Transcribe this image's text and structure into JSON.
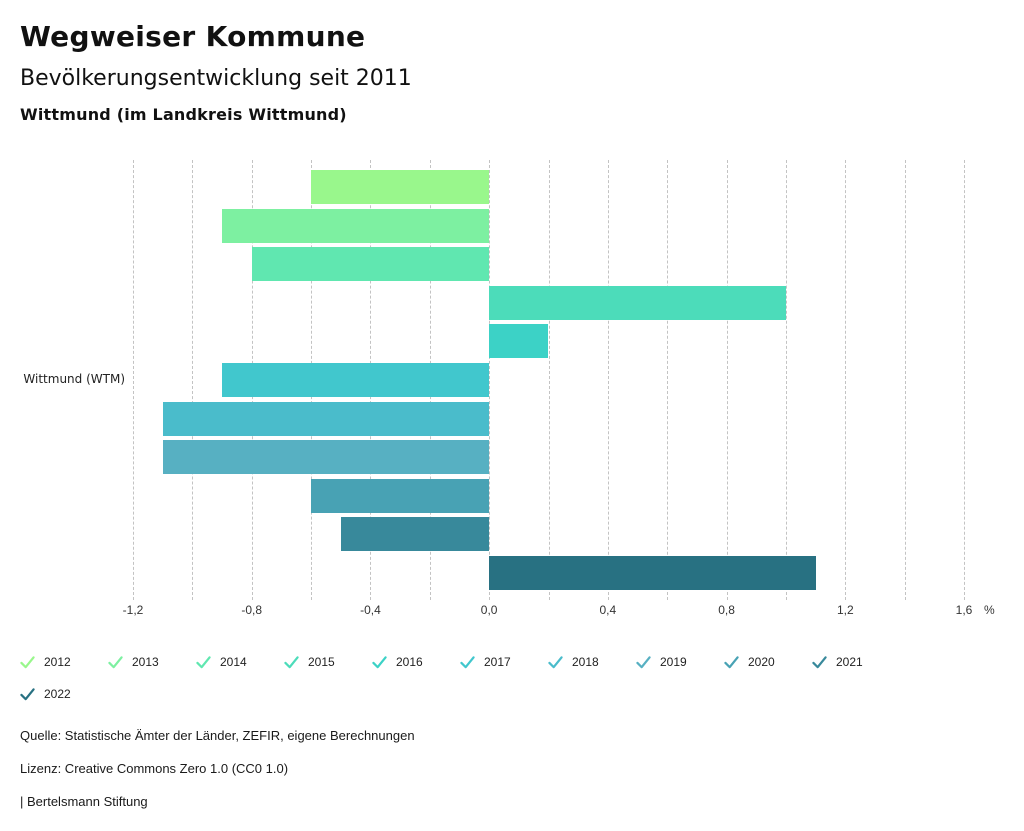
{
  "header": {
    "title": "Wegweiser Kommune",
    "subtitle": "Bevölkerungsentwicklung seit 2011",
    "location": "Wittmund (im Landkreis Wittmund)"
  },
  "chart_data": {
    "type": "bar",
    "orientation": "horizontal",
    "title": "Bevölkerungsentwicklung seit 2011",
    "category_label": "Wittmund (WTM)",
    "series": [
      {
        "name": "2012",
        "value": -0.6,
        "color": "#99f78c"
      },
      {
        "name": "2013",
        "value": -0.9,
        "color": "#7df0a1"
      },
      {
        "name": "2014",
        "value": -0.8,
        "color": "#60e7b0"
      },
      {
        "name": "2015",
        "value": 1.0,
        "color": "#4cdcba"
      },
      {
        "name": "2016",
        "value": 0.2,
        "color": "#3cd2c6"
      },
      {
        "name": "2017",
        "value": -0.9,
        "color": "#41c7cd"
      },
      {
        "name": "2018",
        "value": -1.1,
        "color": "#4abccb"
      },
      {
        "name": "2019",
        "value": -1.1,
        "color": "#57b0c2"
      },
      {
        "name": "2020",
        "value": -0.6,
        "color": "#48a2b4"
      },
      {
        "name": "2021",
        "value": -0.5,
        "color": "#38899b"
      },
      {
        "name": "2022",
        "value": 1.1,
        "color": "#287182"
      }
    ],
    "xlim": [
      -1.2,
      1.6
    ],
    "xticks": [
      -1.2,
      -0.8,
      -0.4,
      0.0,
      0.4,
      0.8,
      1.2,
      1.6
    ],
    "xtick_labels": [
      "-1,2",
      "-0,8",
      "-0,4",
      "0,0",
      "0,4",
      "0,8",
      "1,2",
      "1,6"
    ],
    "xlabel_unit": "%",
    "gridline_step": 0.2,
    "grid": true,
    "legend_position": "bottom"
  },
  "footer": {
    "source": "Quelle: Statistische Ämter der Länder, ZEFIR, eigene Berechnungen",
    "license": "Lizenz: Creative Commons Zero 1.0 (CC0 1.0)",
    "attribution": "| Bertelsmann Stiftung"
  }
}
